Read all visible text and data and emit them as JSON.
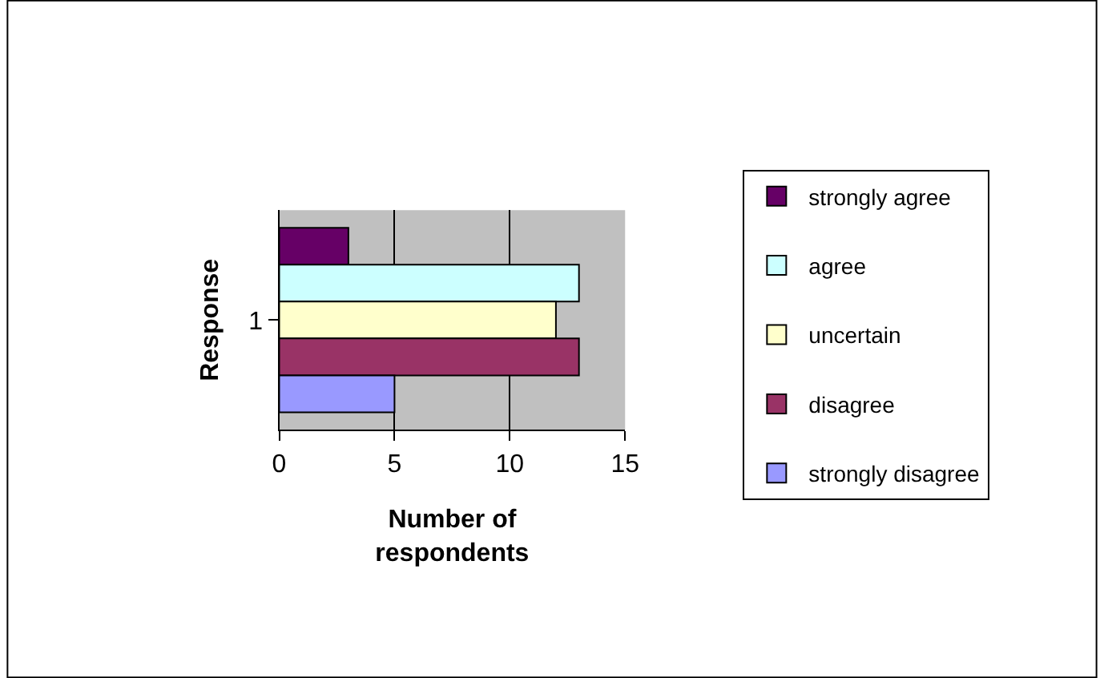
{
  "chart_data": {
    "type": "bar",
    "orientation": "horizontal",
    "categories": [
      "1"
    ],
    "xlabel": "Number of respondents",
    "ylabel": "Response",
    "xlim": [
      0,
      15
    ],
    "xticks": [
      0,
      5,
      10,
      15
    ],
    "grid": "x",
    "legend": "right",
    "series": [
      {
        "name": "strongly agree",
        "color": "#660066",
        "values": [
          3
        ]
      },
      {
        "name": "agree",
        "color": "#ccffff",
        "values": [
          13
        ]
      },
      {
        "name": "uncertain",
        "color": "#ffffcc",
        "values": [
          12
        ]
      },
      {
        "name": "disagree",
        "color": "#993366",
        "values": [
          13
        ]
      },
      {
        "name": "strongly disagree",
        "color": "#9999ff",
        "values": [
          5
        ]
      }
    ]
  }
}
